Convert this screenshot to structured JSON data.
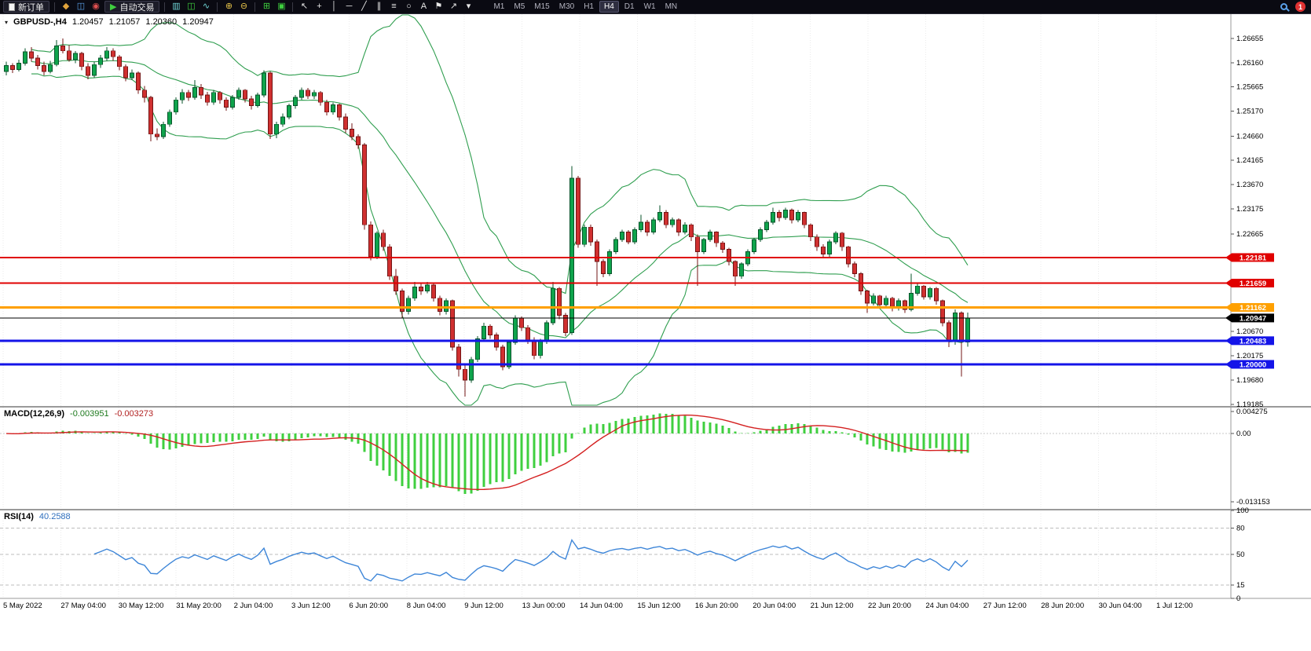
{
  "toolbar": {
    "new_order_label": "新订单",
    "autotrade_label": "自动交易",
    "timeframes": [
      "M1",
      "M5",
      "M15",
      "M30",
      "H1",
      "H4",
      "D1",
      "W1",
      "MN"
    ],
    "active_timeframe": "H4",
    "notification_count": "1"
  },
  "icons": {
    "new_order": "",
    "charts": "◆",
    "market_watch": "◫",
    "data_window": "◉",
    "autotrade": "▶",
    "bar_chart": "▥",
    "candle_chart": "◫",
    "line_chart": "∿",
    "zoom_in": "⊕",
    "zoom_out": "⊖",
    "tile_windows": "⊞",
    "cascade_windows": "▣",
    "cursor": "↖",
    "crosshair": "+",
    "vertical_line": "│",
    "horizontal_line": "─",
    "trendline": "╱",
    "channel": "∥",
    "fibonacci": "≡",
    "shapes": "○",
    "text_tool": "A",
    "label_tool": "⚑",
    "arrow_tool": "↗",
    "dropdown": "▾"
  },
  "price_chart": {
    "symbol_label": "GBPUSD-,H4",
    "open": "1.20457",
    "high": "1.21057",
    "low": "1.20360",
    "close": "1.20947",
    "axis_ticks": [
      "1.26655",
      "1.26160",
      "1.25665",
      "1.25170",
      "1.24660",
      "1.24165",
      "1.23670",
      "1.23175",
      "1.22665",
      "1.20670",
      "1.20175",
      "1.19680",
      "1.19185"
    ],
    "levels": [
      {
        "value": 1.22181,
        "label": "1.22181",
        "color": "#e00000",
        "width": 2,
        "text_color": "#ffffff"
      },
      {
        "value": 1.21659,
        "label": "1.21659",
        "color": "#e00000",
        "width": 2,
        "text_color": "#ffffff"
      },
      {
        "value": 1.21162,
        "label": "1.21162",
        "color": "#ffa000",
        "width": 3,
        "text_color": "#ffffff"
      },
      {
        "value": 1.20947,
        "label": "1.20947",
        "color": "#000000",
        "width": 1,
        "text_color": "#ffffff"
      },
      {
        "value": 1.20483,
        "label": "1.20483",
        "color": "#1414e8",
        "width": 3,
        "text_color": "#ffffff"
      },
      {
        "value": 1.2,
        "label": "1.20000",
        "color": "#1414e8",
        "width": 3,
        "text_color": "#ffffff"
      }
    ]
  },
  "macd": {
    "label": "MACD(12,26,9)",
    "value_main": "-0.003951",
    "value_signal": "-0.003273",
    "axis_ticks": [
      {
        "label": "0.004275",
        "value": 0.004275
      },
      {
        "label": "0.00",
        "value": 0
      },
      {
        "label": "-0.013153",
        "value": -0.013153
      }
    ]
  },
  "rsi": {
    "label": "RSI(14)",
    "value": "40.2588",
    "dashed_levels": [
      80,
      50,
      15
    ],
    "axis_ticks": [
      {
        "label": "100",
        "value": 100
      },
      {
        "label": "80",
        "value": 80
      },
      {
        "label": "50",
        "value": 50
      },
      {
        "label": "15",
        "value": 15
      },
      {
        "label": "0",
        "value": 0
      }
    ]
  },
  "time_axis": {
    "labels": [
      "5 May 2022",
      "27 May 04:00",
      "30 May 12:00",
      "31 May 20:00",
      "2 Jun 04:00",
      "3 Jun 12:00",
      "6 Jun 20:00",
      "8 Jun 04:00",
      "9 Jun 12:00",
      "13 Jun 00:00",
      "14 Jun 04:00",
      "15 Jun 12:00",
      "16 Jun 20:00",
      "20 Jun 04:00",
      "21 Jun 12:00",
      "22 Jun 20:00",
      "24 Jun 04:00",
      "27 Jun 12:00",
      "28 Jun 20:00",
      "30 Jun 04:00",
      "1 Jul 12:00"
    ]
  },
  "colors": {
    "bull": "#0fa44c",
    "bull_border": "#07532a",
    "bear": "#d03030",
    "bear_border": "#731414",
    "bollinger": "#2f9e4f",
    "macd_hist": "#3fcf3f",
    "macd_signal": "#d42020",
    "rsi_line": "#3e86d8",
    "grid": "#ebebeb",
    "panel_border": "#9a9a9a",
    "axis_text": "#000000"
  },
  "chart_data": {
    "type": "candlestick",
    "symbol": "GBPUSD-",
    "timeframe": "H4",
    "current_bar": {
      "open": 1.20457,
      "high": 1.21057,
      "low": 1.2036,
      "close": 1.20947
    },
    "price_range_shown": [
      1.19185,
      1.26655
    ],
    "horizontal_levels": [
      1.22181,
      1.21659,
      1.21162,
      1.20947,
      1.20483,
      1.2
    ],
    "indicators": [
      {
        "name": "Bollinger Bands",
        "period": 20,
        "deviation": 2
      },
      {
        "name": "MACD",
        "fast": 12,
        "slow": 26,
        "signal": 9,
        "current_main": -0.003951,
        "current_signal": -0.003273
      },
      {
        "name": "RSI",
        "period": 14,
        "current": 40.2588
      }
    ],
    "candles": [
      [
        1.2598,
        1.2618,
        1.259,
        1.261
      ],
      [
        1.261,
        1.2615,
        1.2595,
        1.2602
      ],
      [
        1.2602,
        1.2622,
        1.2598,
        1.2615
      ],
      [
        1.2615,
        1.2645,
        1.261,
        1.2638
      ],
      [
        1.2638,
        1.2648,
        1.2618,
        1.2625
      ],
      [
        1.2625,
        1.2632,
        1.2602,
        1.261
      ],
      [
        1.261,
        1.2618,
        1.259,
        1.2598
      ],
      [
        1.2598,
        1.262,
        1.2594,
        1.2612
      ],
      [
        1.2612,
        1.2662,
        1.2608,
        1.265
      ],
      [
        1.265,
        1.2665,
        1.2635,
        1.264
      ],
      [
        1.264,
        1.2652,
        1.2618,
        1.2622
      ],
      [
        1.2622,
        1.264,
        1.2615,
        1.2635
      ],
      [
        1.2635,
        1.2638,
        1.26,
        1.2608
      ],
      [
        1.2608,
        1.2615,
        1.2582,
        1.259
      ],
      [
        1.259,
        1.2618,
        1.2585,
        1.2612
      ],
      [
        1.2612,
        1.2632,
        1.2605,
        1.2625
      ],
      [
        1.2625,
        1.2648,
        1.262,
        1.264
      ],
      [
        1.264,
        1.2645,
        1.262,
        1.2628
      ],
      [
        1.2628,
        1.2632,
        1.26,
        1.2608
      ],
      [
        1.2608,
        1.2612,
        1.2578,
        1.2585
      ],
      [
        1.2585,
        1.2602,
        1.258,
        1.2595
      ],
      [
        1.2595,
        1.2598,
        1.2552,
        1.256
      ],
      [
        1.256,
        1.2568,
        1.2535,
        1.2545
      ],
      [
        1.2545,
        1.2548,
        1.2455,
        1.247
      ],
      [
        1.247,
        1.2482,
        1.2458,
        1.2465
      ],
      [
        1.2465,
        1.2495,
        1.246,
        1.249
      ],
      [
        1.249,
        1.252,
        1.2485,
        1.2515
      ],
      [
        1.2515,
        1.2545,
        1.251,
        1.254
      ],
      [
        1.254,
        1.2562,
        1.2532,
        1.2555
      ],
      [
        1.2555,
        1.256,
        1.2538,
        1.2545
      ],
      [
        1.2545,
        1.258,
        1.254,
        1.2565
      ],
      [
        1.2565,
        1.2572,
        1.2542,
        1.255
      ],
      [
        1.255,
        1.2556,
        1.2528,
        1.2535
      ],
      [
        1.2535,
        1.256,
        1.253,
        1.2555
      ],
      [
        1.2555,
        1.2558,
        1.2532,
        1.254
      ],
      [
        1.254,
        1.2545,
        1.2518,
        1.2525
      ],
      [
        1.2525,
        1.255,
        1.252,
        1.2545
      ],
      [
        1.2545,
        1.2565,
        1.254,
        1.256
      ],
      [
        1.256,
        1.2562,
        1.2535,
        1.2542
      ],
      [
        1.2542,
        1.2548,
        1.252,
        1.2528
      ],
      [
        1.2528,
        1.2555,
        1.2524,
        1.255
      ],
      [
        1.255,
        1.26,
        1.2545,
        1.2595
      ],
      [
        1.2595,
        1.2598,
        1.246,
        1.247
      ],
      [
        1.247,
        1.2495,
        1.2462,
        1.249
      ],
      [
        1.249,
        1.2512,
        1.2485,
        1.2505
      ],
      [
        1.2505,
        1.2532,
        1.25,
        1.2528
      ],
      [
        1.2528,
        1.255,
        1.2522,
        1.2545
      ],
      [
        1.2545,
        1.2565,
        1.254,
        1.256
      ],
      [
        1.256,
        1.2564,
        1.2542,
        1.2548
      ],
      [
        1.2548,
        1.256,
        1.2542,
        1.2555
      ],
      [
        1.2555,
        1.2558,
        1.2528,
        1.2535
      ],
      [
        1.2535,
        1.254,
        1.2508,
        1.2515
      ],
      [
        1.2515,
        1.2535,
        1.251,
        1.253
      ],
      [
        1.253,
        1.2532,
        1.2498,
        1.2505
      ],
      [
        1.2505,
        1.2512,
        1.2472,
        1.248
      ],
      [
        1.248,
        1.2492,
        1.2458,
        1.2465
      ],
      [
        1.2465,
        1.247,
        1.244,
        1.2448
      ],
      [
        1.2448,
        1.2452,
        1.2275,
        1.2285
      ],
      [
        1.2285,
        1.2292,
        1.2212,
        1.222
      ],
      [
        1.222,
        1.2272,
        1.2215,
        1.2268
      ],
      [
        1.2268,
        1.2275,
        1.2232,
        1.224
      ],
      [
        1.224,
        1.2245,
        1.2172,
        1.218
      ],
      [
        1.218,
        1.2195,
        1.2142,
        1.215
      ],
      [
        1.215,
        1.2155,
        1.2095,
        1.2108
      ],
      [
        1.2108,
        1.214,
        1.2102,
        1.2135
      ],
      [
        1.2135,
        1.2168,
        1.213,
        1.2158
      ],
      [
        1.2158,
        1.2165,
        1.2142,
        1.215
      ],
      [
        1.215,
        1.2168,
        1.2145,
        1.2162
      ],
      [
        1.2162,
        1.2165,
        1.2128,
        1.2135
      ],
      [
        1.2135,
        1.214,
        1.21,
        1.2108
      ],
      [
        1.2108,
        1.2135,
        1.2102,
        1.213
      ],
      [
        1.213,
        1.2132,
        1.2028,
        1.2035
      ],
      [
        1.2035,
        1.2042,
        1.1975,
        1.199
      ],
      [
        1.199,
        1.1998,
        1.1934,
        1.1968
      ],
      [
        1.1968,
        1.2015,
        1.1962,
        1.201
      ],
      [
        1.201,
        1.2058,
        1.2005,
        1.2052
      ],
      [
        1.2052,
        1.2085,
        1.2048,
        1.2078
      ],
      [
        1.2078,
        1.2082,
        1.2052,
        1.206
      ],
      [
        1.206,
        1.2065,
        1.2028,
        1.2035
      ],
      [
        1.2035,
        1.204,
        1.1988,
        1.1995
      ],
      [
        1.1995,
        1.205,
        1.199,
        1.2045
      ],
      [
        1.2045,
        1.21,
        1.204,
        1.2095
      ],
      [
        1.2095,
        1.2098,
        1.2068,
        1.2075
      ],
      [
        1.2075,
        1.208,
        1.2042,
        1.205
      ],
      [
        1.205,
        1.2055,
        1.201,
        1.2018
      ],
      [
        1.2018,
        1.2052,
        1.2012,
        1.2048
      ],
      [
        1.2048,
        1.209,
        1.2042,
        1.2085
      ],
      [
        1.2085,
        1.2168,
        1.208,
        1.2155
      ],
      [
        1.2155,
        1.2158,
        1.2092,
        1.21
      ],
      [
        1.21,
        1.2105,
        1.2058,
        1.2065
      ],
      [
        1.2065,
        1.2405,
        1.206,
        1.238
      ],
      [
        1.238,
        1.2385,
        1.2238,
        1.2245
      ],
      [
        1.2245,
        1.2285,
        1.224,
        1.228
      ],
      [
        1.228,
        1.2285,
        1.2242,
        1.225
      ],
      [
        1.225,
        1.2255,
        1.216,
        1.221
      ],
      [
        1.221,
        1.2215,
        1.2178,
        1.2185
      ],
      [
        1.2185,
        1.2235,
        1.218,
        1.223
      ],
      [
        1.223,
        1.226,
        1.2225,
        1.2255
      ],
      [
        1.2255,
        1.2275,
        1.225,
        1.227
      ],
      [
        1.227,
        1.2274,
        1.2245,
        1.225
      ],
      [
        1.225,
        1.228,
        1.2245,
        1.2275
      ],
      [
        1.2275,
        1.2305,
        1.227,
        1.229
      ],
      [
        1.229,
        1.2295,
        1.2262,
        1.227
      ],
      [
        1.227,
        1.23,
        1.2265,
        1.2295
      ],
      [
        1.2295,
        1.2325,
        1.229,
        1.231
      ],
      [
        1.231,
        1.2315,
        1.2278,
        1.2285
      ],
      [
        1.2285,
        1.23,
        1.228,
        1.2295
      ],
      [
        1.2295,
        1.2298,
        1.2262,
        1.227
      ],
      [
        1.227,
        1.229,
        1.2265,
        1.2285
      ],
      [
        1.2285,
        1.2288,
        1.2252,
        1.226
      ],
      [
        1.226,
        1.2265,
        1.216,
        1.223
      ],
      [
        1.223,
        1.2258,
        1.2225,
        1.2255
      ],
      [
        1.2255,
        1.2275,
        1.225,
        1.227
      ],
      [
        1.227,
        1.2272,
        1.224,
        1.2248
      ],
      [
        1.2248,
        1.2252,
        1.2228,
        1.2235
      ],
      [
        1.2235,
        1.2238,
        1.2202,
        1.221
      ],
      [
        1.221,
        1.2212,
        1.216,
        1.218
      ],
      [
        1.218,
        1.2208,
        1.2175,
        1.2205
      ],
      [
        1.2205,
        1.2235,
        1.22,
        1.223
      ],
      [
        1.223,
        1.2258,
        1.2225,
        1.2255
      ],
      [
        1.2255,
        1.228,
        1.225,
        1.2275
      ],
      [
        1.2275,
        1.2295,
        1.227,
        1.229
      ],
      [
        1.229,
        1.232,
        1.2285,
        1.231
      ],
      [
        1.231,
        1.2315,
        1.2292,
        1.23
      ],
      [
        1.23,
        1.232,
        1.2295,
        1.2315
      ],
      [
        1.2315,
        1.2318,
        1.2288,
        1.2295
      ],
      [
        1.2295,
        1.2315,
        1.229,
        1.231
      ],
      [
        1.231,
        1.2312,
        1.2278,
        1.2285
      ],
      [
        1.2285,
        1.2288,
        1.2252,
        1.226
      ],
      [
        1.226,
        1.2265,
        1.2232,
        1.224
      ],
      [
        1.224,
        1.2245,
        1.2218,
        1.2225
      ],
      [
        1.2225,
        1.2255,
        1.222,
        1.225
      ],
      [
        1.225,
        1.2272,
        1.2245,
        1.2268
      ],
      [
        1.2268,
        1.227,
        1.2232,
        1.224
      ],
      [
        1.224,
        1.2242,
        1.2198,
        1.2205
      ],
      [
        1.2205,
        1.221,
        1.2178,
        1.2185
      ],
      [
        1.2185,
        1.2188,
        1.2142,
        1.215
      ],
      [
        1.215,
        1.2152,
        1.2105,
        1.2125
      ],
      [
        1.2125,
        1.2145,
        1.212,
        1.214
      ],
      [
        1.214,
        1.2142,
        1.2115,
        1.2122
      ],
      [
        1.2122,
        1.214,
        1.2118,
        1.2135
      ],
      [
        1.2135,
        1.2138,
        1.2108,
        1.2115
      ],
      [
        1.2115,
        1.2135,
        1.211,
        1.213
      ],
      [
        1.213,
        1.2132,
        1.2105,
        1.2112
      ],
      [
        1.2112,
        1.2185,
        1.2108,
        1.2145
      ],
      [
        1.2145,
        1.2165,
        1.214,
        1.216
      ],
      [
        1.216,
        1.2162,
        1.2132,
        1.2138
      ],
      [
        1.2138,
        1.2158,
        1.2132,
        1.2155
      ],
      [
        1.2155,
        1.2158,
        1.2122,
        1.213
      ],
      [
        1.213,
        1.2132,
        1.2078,
        1.2085
      ],
      [
        1.2085,
        1.209,
        1.2035,
        1.2048
      ],
      [
        1.2048,
        1.2112,
        1.204,
        1.2105
      ],
      [
        1.2105,
        1.2108,
        1.1975,
        1.2046
      ],
      [
        1.20457,
        1.21057,
        1.2036,
        1.20947
      ]
    ]
  }
}
